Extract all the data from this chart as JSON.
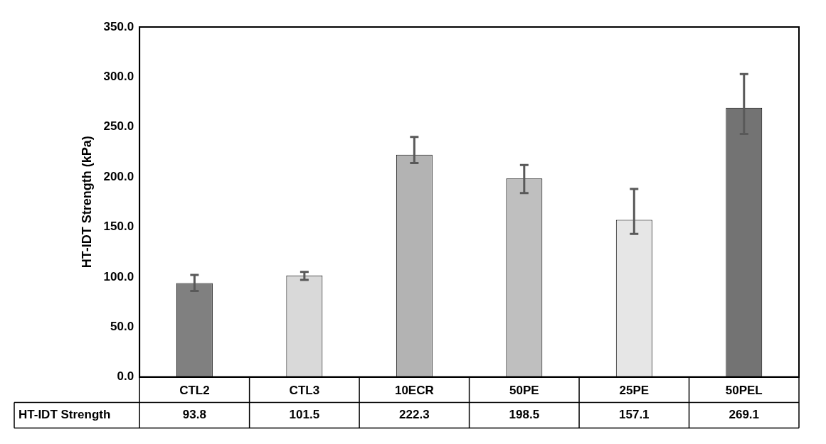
{
  "chart_data": {
    "type": "bar",
    "ylabel": "HT-IDT Strength (kPa)",
    "categories": [
      "CTL2",
      "CTL3",
      "10ECR",
      "50PE",
      "25PE",
      "50PEL"
    ],
    "series": [
      {
        "name": "HT-IDT Strength",
        "colors": [
          "#808080",
          "#d9d9d9",
          "#b3b3b3",
          "#bfbfbf",
          "#e6e6e6",
          "#737373"
        ],
        "values": [
          93.8,
          101.5,
          222.3,
          198.5,
          157.1,
          269.1
        ],
        "errors": [
          [
            86,
            102
          ],
          [
            97,
            105
          ],
          [
            214,
            240
          ],
          [
            184,
            212
          ],
          [
            143,
            188
          ],
          [
            243,
            303
          ]
        ]
      }
    ],
    "ylim": [
      0,
      350
    ],
    "yticks": [
      {
        "value": 0,
        "label": "0.0"
      },
      {
        "value": 50,
        "label": "50.0"
      },
      {
        "value": 100,
        "label": "100.0"
      },
      {
        "value": 150,
        "label": "150.0"
      },
      {
        "value": 200,
        "label": "200.0"
      },
      {
        "value": 250,
        "label": "250.0"
      },
      {
        "value": 300,
        "label": "300.0"
      },
      {
        "value": 350,
        "label": "350.0"
      }
    ],
    "grid": false,
    "legend": "bottom left",
    "data_labels": true
  }
}
